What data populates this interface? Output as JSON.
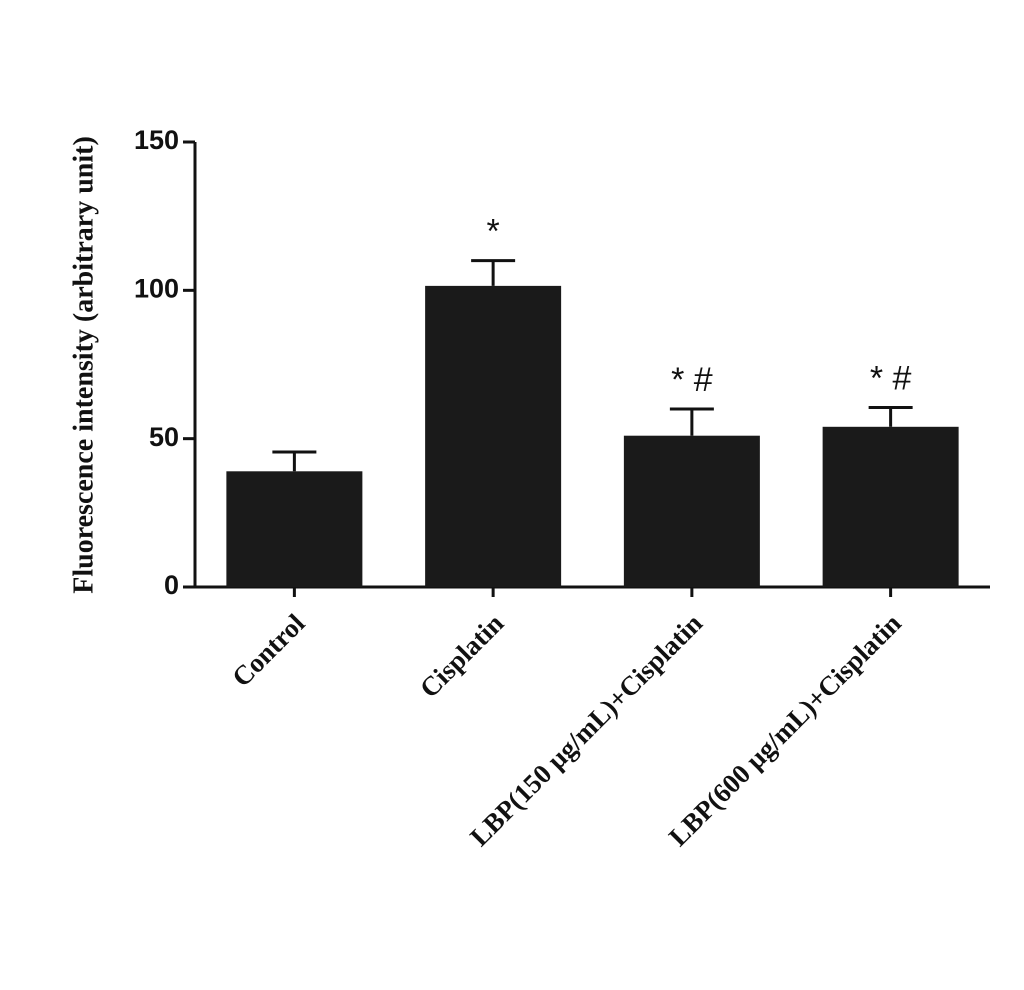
{
  "chart_data": {
    "type": "bar",
    "ylabel": "Fluorescence intensity (arbitrary unit)",
    "categories": [
      "Control",
      "Cisplatin",
      "LBP(150 μg/mL)+Cisplatin",
      "LBP(600 μg/mL)+Cisplatin"
    ],
    "values": [
      39,
      101.5,
      51,
      54
    ],
    "errors": [
      6.5,
      8.5,
      9,
      6.5
    ],
    "annotations": [
      null,
      "*",
      "* #",
      "* #"
    ],
    "color": "#1a1a1a",
    "ylim": [
      0,
      150
    ],
    "yticks": [
      0,
      50,
      100,
      150
    ],
    "grid": false
  }
}
